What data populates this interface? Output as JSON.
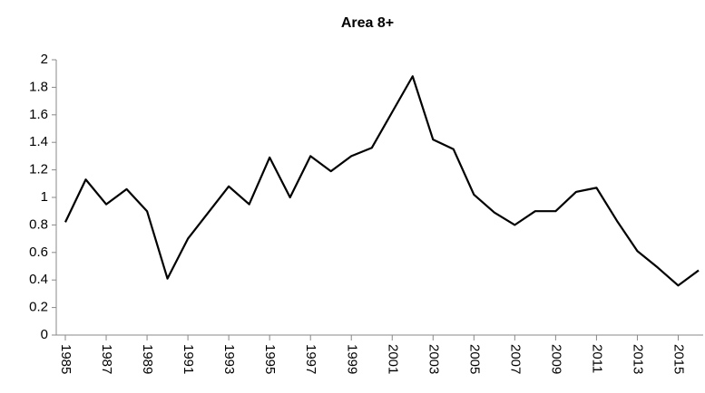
{
  "chart_data": {
    "type": "line",
    "title": "Area 8+",
    "x": [
      1985,
      1986,
      1987,
      1988,
      1989,
      1990,
      1991,
      1992,
      1993,
      1994,
      1995,
      1996,
      1997,
      1998,
      1999,
      2000,
      2001,
      2002,
      2003,
      2004,
      2005,
      2006,
      2007,
      2008,
      2009,
      2010,
      2011,
      2012,
      2013,
      2014,
      2015,
      2016
    ],
    "values": [
      0.82,
      1.13,
      0.95,
      1.06,
      0.9,
      0.41,
      0.7,
      0.89,
      1.08,
      0.95,
      1.29,
      1.0,
      1.3,
      1.19,
      1.3,
      1.36,
      1.62,
      1.88,
      1.42,
      1.35,
      1.02,
      0.89,
      0.8,
      0.9,
      0.9,
      1.04,
      1.07,
      0.83,
      0.61,
      0.49,
      0.36,
      0.47
    ],
    "color": "#000000",
    "xlim": [
      1985,
      2016
    ],
    "xticks": [
      1985,
      1987,
      1989,
      1991,
      1993,
      1995,
      1997,
      1999,
      2001,
      2003,
      2005,
      2007,
      2009,
      2011,
      2013,
      2015
    ],
    "ylim": [
      0,
      2
    ],
    "yticks": [
      0,
      0.2,
      0.4,
      0.6,
      0.8,
      1,
      1.2,
      1.4,
      1.6,
      1.8,
      2
    ],
    "grid": false
  }
}
